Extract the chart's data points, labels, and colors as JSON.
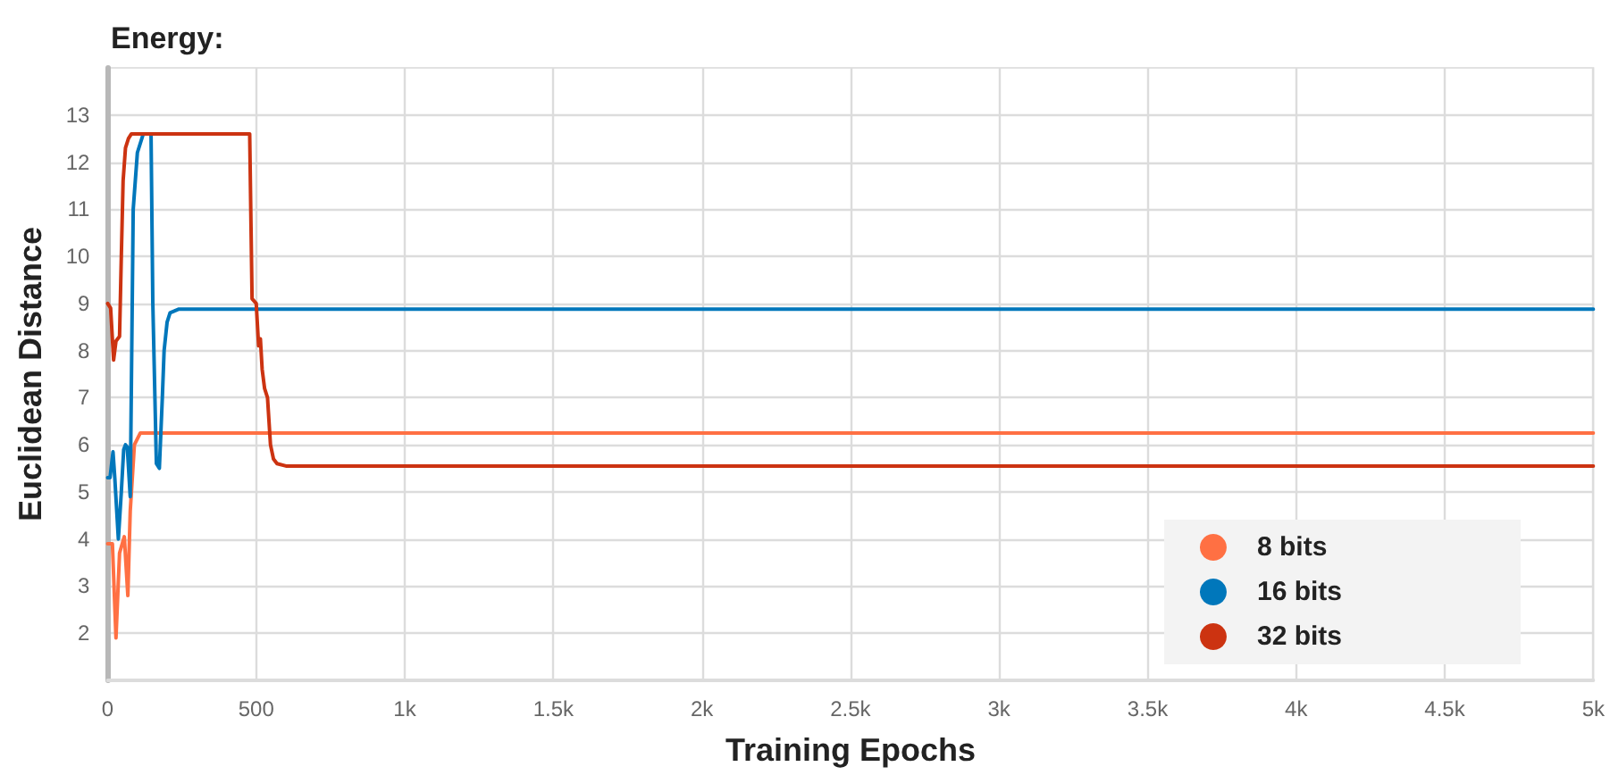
{
  "chart_data": {
    "type": "line",
    "title": "Energy:",
    "xlabel": "Training Epochs",
    "ylabel": "Euclidean Distance",
    "xlim": [
      0,
      5000
    ],
    "xticks": [
      0,
      500,
      {
        "value": 1000,
        "label": "1k"
      },
      {
        "value": 1500,
        "label": "1.5k"
      },
      {
        "value": 2000,
        "label": "2k"
      },
      {
        "value": 2500,
        "label": "2.5k"
      },
      {
        "value": 3000,
        "label": "3k"
      },
      {
        "value": 3500,
        "label": "3.5k"
      },
      {
        "value": 4000,
        "label": "4k"
      },
      {
        "value": 4500,
        "label": "4.5k"
      },
      {
        "value": 5000,
        "label": "5k"
      }
    ],
    "ylim": [
      1,
      14
    ],
    "yticks": [
      2,
      3,
      4,
      5,
      6,
      7,
      8,
      9,
      10,
      11,
      12,
      13
    ],
    "grid": true,
    "legend": "bottom right",
    "marker": "none",
    "line_style": "solid",
    "series": [
      {
        "name": "8 bits",
        "color": "#ff7043",
        "x": [
          0,
          16,
          28,
          40,
          56,
          68,
          76,
          90,
          110,
          5000
        ],
        "values": [
          3.9,
          3.9,
          1.9,
          3.7,
          4.05,
          2.8,
          4.6,
          6.0,
          6.25,
          6.25
        ]
      },
      {
        "name": "16 bits",
        "color": "#0077bb",
        "x": [
          0,
          8,
          18,
          24,
          36,
          46,
          54,
          60,
          66,
          76,
          86,
          100,
          120,
          146,
          152,
          164,
          174,
          184,
          190,
          200,
          210,
          240,
          5000
        ],
        "values": [
          5.3,
          5.3,
          5.85,
          5.3,
          4.0,
          5.0,
          5.9,
          6.0,
          5.95,
          4.9,
          11.0,
          12.2,
          12.6,
          12.6,
          9.0,
          5.6,
          5.5,
          7.0,
          8.0,
          8.6,
          8.8,
          8.88,
          8.88
        ]
      },
      {
        "name": "32 bits",
        "color": "#cc3311",
        "x": [
          0,
          10,
          20,
          28,
          40,
          46,
          52,
          60,
          70,
          80,
          478,
          486,
          500,
          508,
          514,
          520,
          528,
          538,
          548,
          558,
          570,
          600,
          5000
        ],
        "values": [
          9.0,
          8.9,
          7.8,
          8.2,
          8.3,
          10.0,
          11.6,
          12.3,
          12.5,
          12.6,
          12.6,
          9.1,
          9.0,
          8.1,
          8.25,
          7.6,
          7.2,
          7.0,
          6.0,
          5.7,
          5.6,
          5.55,
          5.55
        ]
      }
    ]
  }
}
